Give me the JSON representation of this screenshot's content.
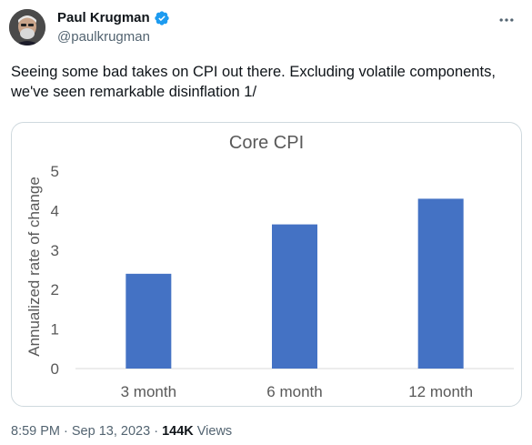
{
  "author": {
    "display_name": "Paul Krugman",
    "handle": "@paulkrugman",
    "verified": true,
    "verified_color": "#1d9bf0"
  },
  "tweet": {
    "text_line1": "Seeing some bad takes on CPI out there. Excluding volatile components,",
    "text_line2": "we've seen remarkable disinflation 1/"
  },
  "meta": {
    "time": "8:59 PM",
    "separator1": " · ",
    "date": "Sep 13, 2023",
    "separator2": " · ",
    "views_count": "144K",
    "views_label": " Views"
  },
  "icons": {
    "more": "more-horizontal-icon",
    "verified": "verified-badge-icon"
  },
  "chart_data": {
    "type": "bar",
    "title": "Core CPI",
    "ylabel": "Annualized rate of change",
    "xlabel": "",
    "categories": [
      "3 month",
      "6 month",
      "12 month"
    ],
    "values": [
      2.4,
      3.65,
      4.3
    ],
    "ylim": [
      0,
      5
    ],
    "yticks": [
      "0",
      "1",
      "2",
      "3",
      "4",
      "5"
    ],
    "bar_color": "#4472c4",
    "grid": false
  }
}
